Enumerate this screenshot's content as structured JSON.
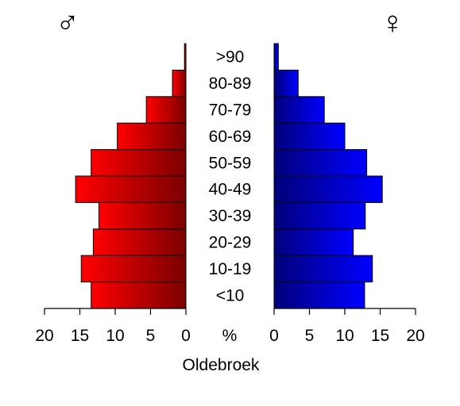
{
  "chart_data": {
    "type": "bar",
    "subtype": "population-pyramid",
    "title": "Oldebroek",
    "xlabel": "%",
    "categories": [
      "<10",
      "10-19",
      "20-29",
      "30-39",
      "40-49",
      "50-59",
      "60-69",
      "70-79",
      "80-89",
      ">90"
    ],
    "series": [
      {
        "name": "♂",
        "side": "left",
        "values": [
          13.4,
          14.8,
          13.1,
          12.3,
          15.6,
          13.4,
          9.7,
          5.6,
          1.9,
          0.2
        ],
        "colors": {
          "outer": "#ff0000",
          "inner": "#7a0000"
        }
      },
      {
        "name": "♀",
        "side": "right",
        "values": [
          12.8,
          13.9,
          11.2,
          12.9,
          15.3,
          13.1,
          10.0,
          7.1,
          3.4,
          0.6
        ],
        "colors": {
          "outer": "#0000ff",
          "inner": "#00007a"
        }
      }
    ],
    "xlim": [
      0,
      20
    ],
    "left_ticks": [
      "20",
      "15",
      "10",
      "5",
      "0"
    ],
    "right_ticks": [
      "0",
      "5",
      "10",
      "15",
      "20"
    ],
    "grid": false,
    "legend": "none"
  }
}
